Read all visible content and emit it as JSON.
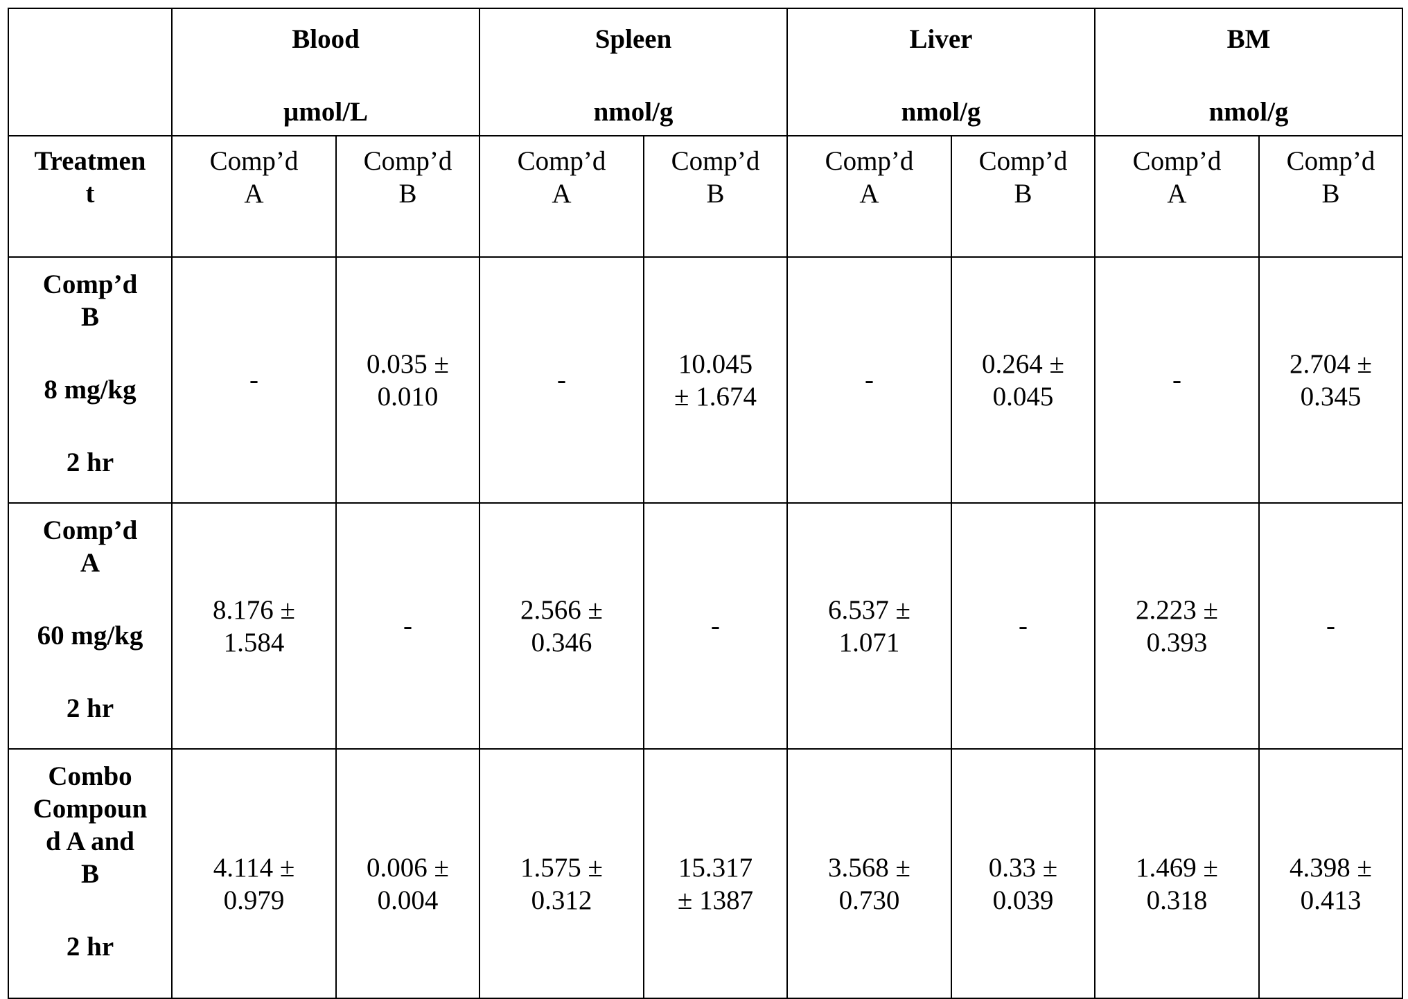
{
  "table": {
    "corner": "",
    "groups": [
      {
        "name": "Blood",
        "unit": "µmol/L"
      },
      {
        "name": "Spleen",
        "unit": "nmol/g"
      },
      {
        "name": "Liver",
        "unit": "nmol/g"
      },
      {
        "name": "BM",
        "unit": "nmol/g"
      }
    ],
    "treatment_header": {
      "line1": "Treatmen",
      "line2": "t"
    },
    "sub_headers": [
      {
        "line1": "Comp’d",
        "line2": "A"
      },
      {
        "line1": "Comp’d",
        "line2": "B"
      },
      {
        "line1": "Comp’d",
        "line2": "A"
      },
      {
        "line1": "Comp’d",
        "line2": "B"
      },
      {
        "line1": "Comp’d",
        "line2": "A"
      },
      {
        "line1": "Comp’d",
        "line2": "B"
      },
      {
        "line1": "Comp’d",
        "line2": "A"
      },
      {
        "line1": "Comp’d",
        "line2": "B"
      }
    ],
    "rows": [
      {
        "treatment": {
          "l1": "Comp’d",
          "l2": "B",
          "l3": "",
          "l4": "8 mg/kg",
          "l5": "2 hr"
        },
        "cells": [
          {
            "l1": "-",
            "l2": ""
          },
          {
            "l1": "0.035 ±",
            "l2": "0.010"
          },
          {
            "l1": "-",
            "l2": ""
          },
          {
            "l1": "10.045",
            "l2": "± 1.674"
          },
          {
            "l1": "-",
            "l2": ""
          },
          {
            "l1": "0.264 ±",
            "l2": "0.045"
          },
          {
            "l1": "-",
            "l2": ""
          },
          {
            "l1": "2.704 ±",
            "l2": "0.345"
          }
        ]
      },
      {
        "treatment": {
          "l1": "Comp’d",
          "l2": "A",
          "l3": "",
          "l4": "60 mg/kg",
          "l5": "2 hr"
        },
        "cells": [
          {
            "l1": "8.176 ±",
            "l2": "1.584"
          },
          {
            "l1": "-",
            "l2": ""
          },
          {
            "l1": "2.566 ±",
            "l2": "0.346"
          },
          {
            "l1": "-",
            "l2": ""
          },
          {
            "l1": "6.537 ±",
            "l2": "1.071"
          },
          {
            "l1": "-",
            "l2": ""
          },
          {
            "l1": "2.223 ±",
            "l2": "0.393"
          },
          {
            "l1": "-",
            "l2": ""
          }
        ]
      },
      {
        "treatment": {
          "l1": "Combo",
          "l2": "Compoun",
          "l3": "d A and",
          "l3b": "B",
          "l5": "2 hr"
        },
        "cells": [
          {
            "l1": "4.114 ±",
            "l2": "0.979"
          },
          {
            "l1": "0.006 ±",
            "l2": "0.004"
          },
          {
            "l1": "1.575 ±",
            "l2": "0.312"
          },
          {
            "l1": "15.317",
            "l2": "± 1387"
          },
          {
            "l1": "3.568 ±",
            "l2": "0.730"
          },
          {
            "l1": "0.33 ±",
            "l2": "0.039"
          },
          {
            "l1": "1.469 ±",
            "l2": "0.318"
          },
          {
            "l1": "4.398 ±",
            "l2": "0.413"
          }
        ]
      }
    ]
  }
}
